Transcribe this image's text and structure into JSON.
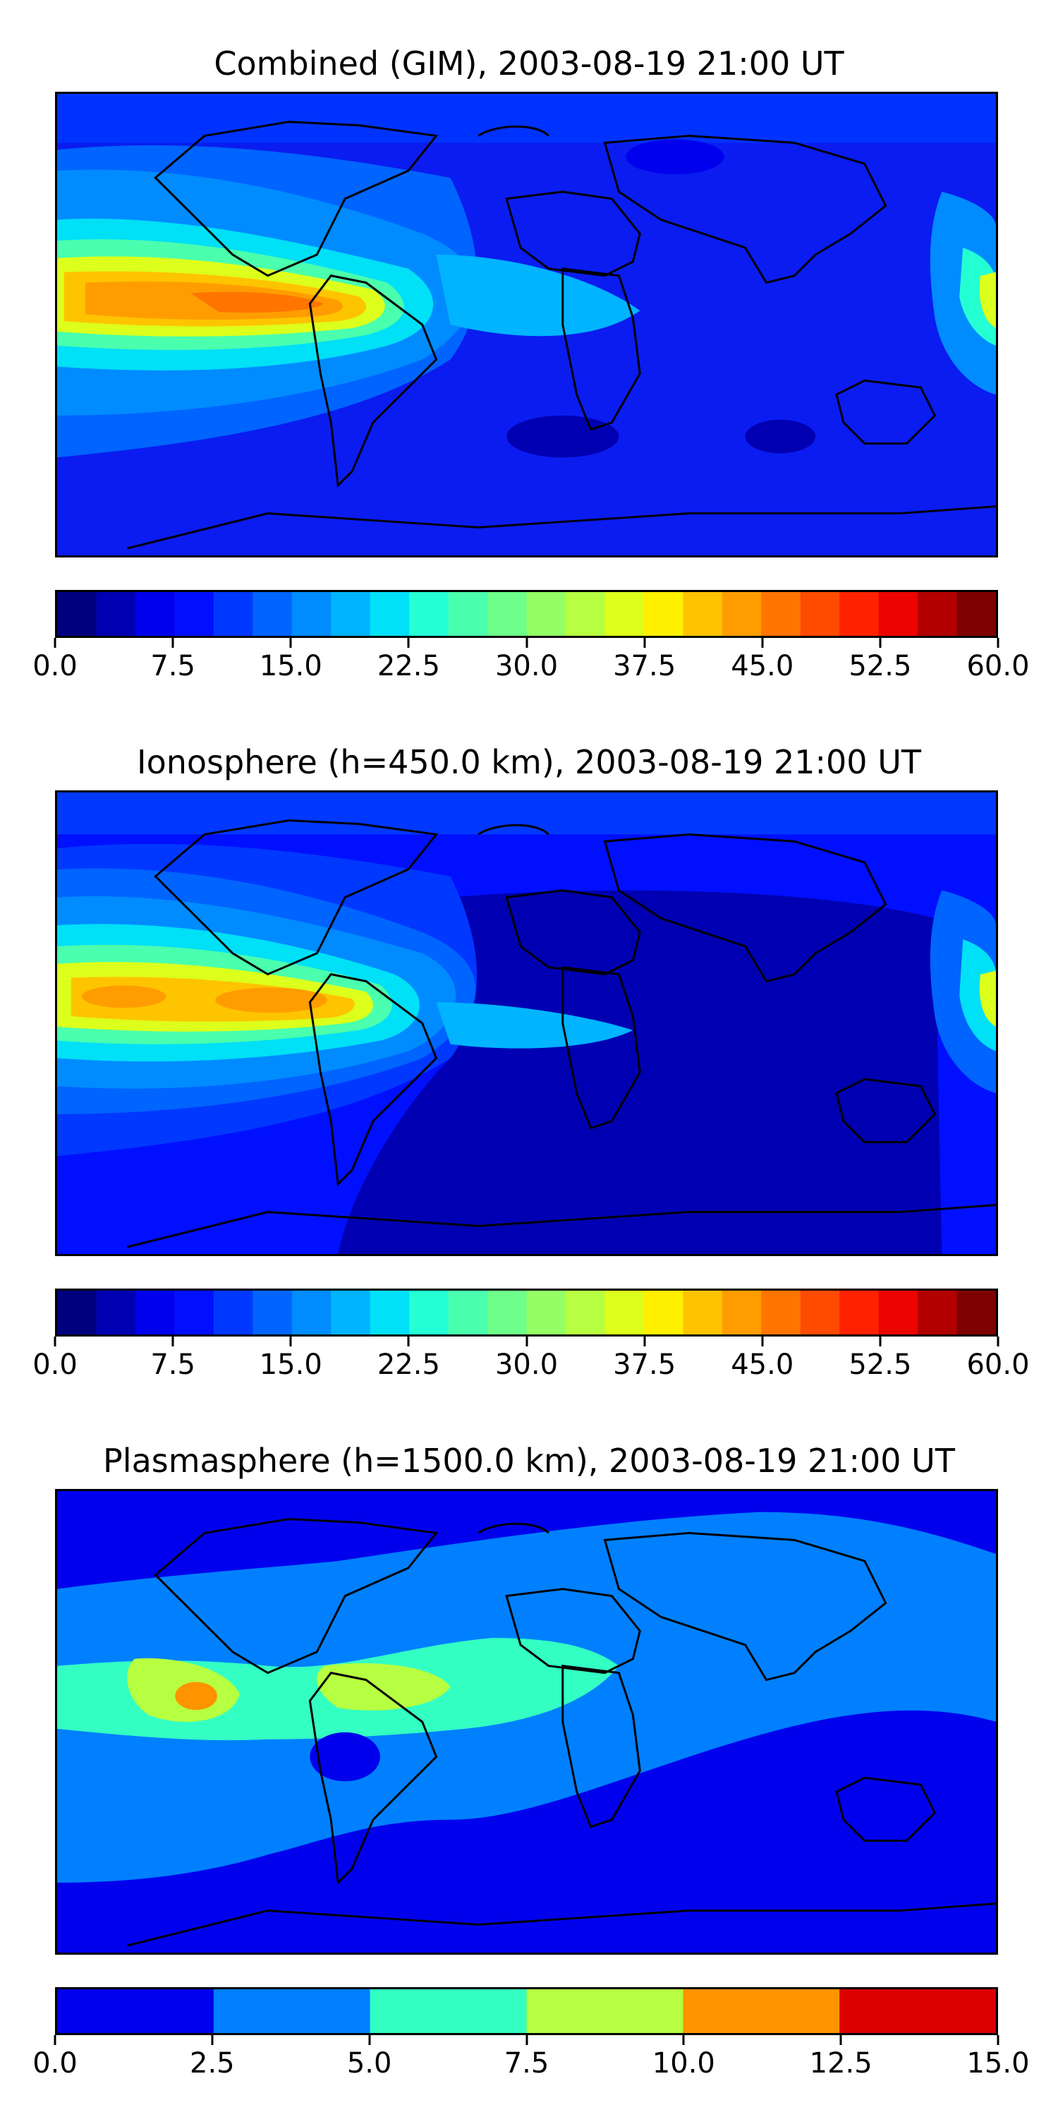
{
  "panels": [
    {
      "title": "Combined (GIM), 2003-08-19 21:00 UT",
      "colorbar": {
        "min": 0,
        "max": 60,
        "colors": [
          "#00007f",
          "#0000b2",
          "#0000ed",
          "#0010ff",
          "#0038ff",
          "#0064ff",
          "#008cff",
          "#00b4ff",
          "#00e0f7",
          "#24ffd3",
          "#4affad",
          "#6dff89",
          "#93ff64",
          "#b6ff41",
          "#dcff1b",
          "#fff000",
          "#ffc400",
          "#ff9d00",
          "#ff7500",
          "#ff4b00",
          "#ff2200",
          "#ed0400",
          "#b20000",
          "#7f0000"
        ],
        "ticks": [
          "0.0",
          "7.5",
          "15.0",
          "22.5",
          "30.0",
          "37.5",
          "45.0",
          "52.5",
          "60.0"
        ]
      }
    },
    {
      "title": "Ionosphere  (h=450.0 km), 2003-08-19 21:00 UT",
      "colorbar": {
        "min": 0,
        "max": 60,
        "colors": [
          "#00007f",
          "#0000b2",
          "#0000ed",
          "#0010ff",
          "#0038ff",
          "#0064ff",
          "#008cff",
          "#00b4ff",
          "#00e0f7",
          "#24ffd3",
          "#4affad",
          "#6dff89",
          "#93ff64",
          "#b6ff41",
          "#dcff1b",
          "#fff000",
          "#ffc400",
          "#ff9d00",
          "#ff7500",
          "#ff4b00",
          "#ff2200",
          "#ed0400",
          "#b20000",
          "#7f0000"
        ],
        "ticks": [
          "0.0",
          "7.5",
          "15.0",
          "22.5",
          "30.0",
          "37.5",
          "45.0",
          "52.5",
          "60.0"
        ]
      }
    },
    {
      "title": "Plasmasphere (h=1500.0 km), 2003-08-19 21:00 UT",
      "colorbar": {
        "min": 0,
        "max": 15,
        "colors": [
          "#0000ed",
          "#0080ff",
          "#33ffc3",
          "#b6ff41",
          "#ff9400",
          "#dc0000"
        ],
        "ticks": [
          "0.0",
          "2.5",
          "5.0",
          "7.5",
          "10.0",
          "12.5",
          "15.0"
        ]
      }
    }
  ]
}
